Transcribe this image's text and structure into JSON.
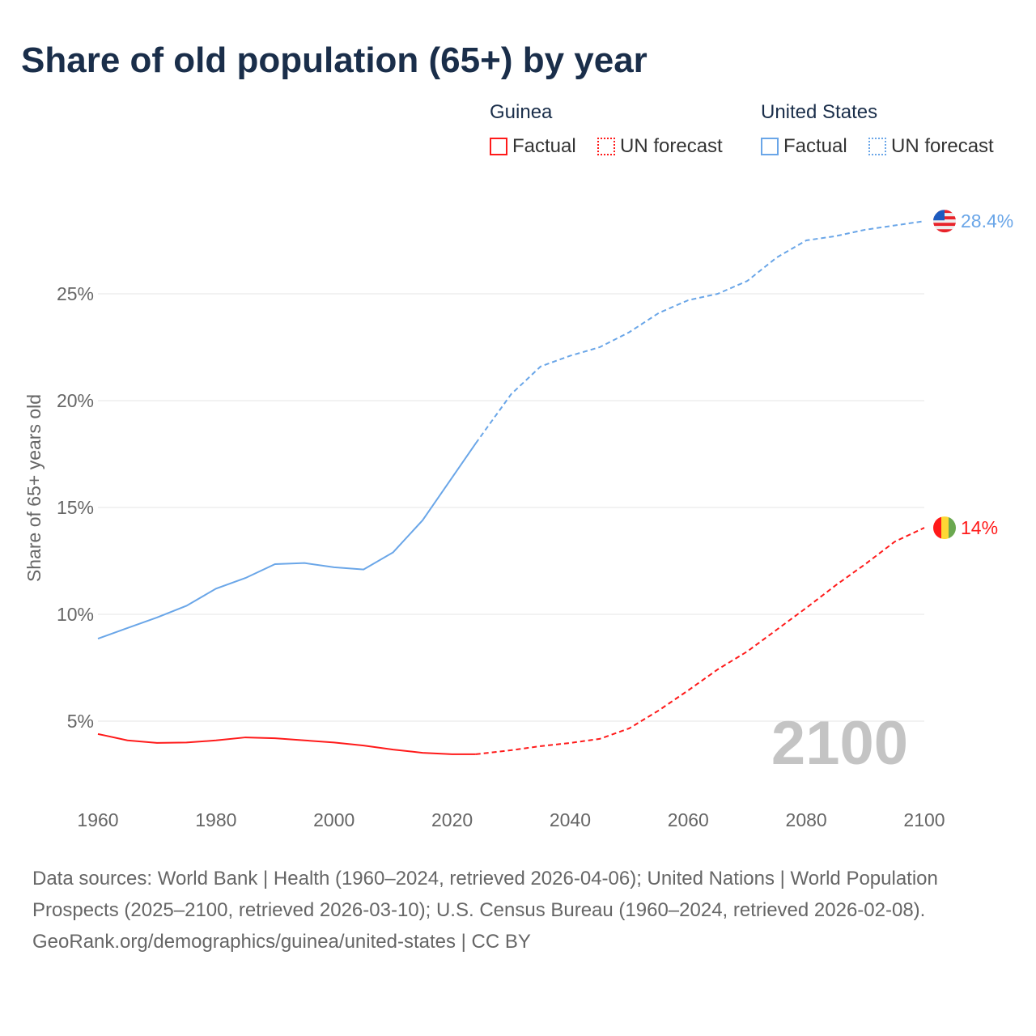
{
  "title": "Share of old population (65+) by year",
  "legend": {
    "groups": [
      {
        "name": "Guinea",
        "color": "#ff1a1a",
        "items": [
          "Factual",
          "UN forecast"
        ]
      },
      {
        "name": "United States",
        "color": "#6aa6e8",
        "items": [
          "Factual",
          "UN forecast"
        ]
      }
    ]
  },
  "year_watermark": "2100",
  "footer": {
    "sources": "Data sources: World Bank | Health (1960–2024, retrieved 2026-04-06); United Nations | World Population Prospects (2025–2100, retrieved 2026-03-10); U.S. Census Bureau (1960–2024, retrieved 2026-02-08).",
    "credit": "GeoRank.org/demographics/guinea/united-states | CC BY"
  },
  "chart_data": {
    "type": "line",
    "title": "Share of old population (65+) by year",
    "xlabel": "",
    "ylabel": "Share of 65+ years old",
    "xlim": [
      1960,
      2100
    ],
    "ylim": [
      0,
      30
    ],
    "xticks": [
      1960,
      1980,
      2000,
      2020,
      2040,
      2060,
      2080,
      2100
    ],
    "xtick_labels": [
      "1960",
      "1980",
      "2000",
      "2020",
      "2040",
      "2060",
      "2080",
      "2100"
    ],
    "yticks": [
      5,
      10,
      15,
      20,
      25
    ],
    "ytick_labels": [
      "5%",
      "10%",
      "15%",
      "20%",
      "25%"
    ],
    "grid": true,
    "legend_position": "top-right",
    "forecast_start": 2024,
    "x": [
      1960,
      1965,
      1970,
      1975,
      1980,
      1985,
      1990,
      1995,
      2000,
      2005,
      2010,
      2015,
      2020,
      2024,
      2030,
      2035,
      2040,
      2045,
      2050,
      2055,
      2060,
      2065,
      2070,
      2075,
      2080,
      2085,
      2090,
      2095,
      2100
    ],
    "series": [
      {
        "name": "United States",
        "color": "#6aa6e8",
        "end_label": "28.4%",
        "values": [
          8.86,
          9.36,
          9.85,
          10.4,
          11.2,
          11.7,
          12.35,
          12.4,
          12.2,
          12.1,
          12.9,
          14.4,
          16.4,
          18.0,
          20.3,
          21.6,
          22.1,
          22.5,
          23.2,
          24.1,
          24.7,
          25.0,
          25.6,
          26.7,
          27.5,
          27.7,
          28.0,
          28.2,
          28.4
        ]
      },
      {
        "name": "Guinea",
        "color": "#ff1a1a",
        "end_label": "14%",
        "values": [
          4.4,
          4.1,
          3.98,
          4.0,
          4.1,
          4.24,
          4.2,
          4.1,
          4.0,
          3.86,
          3.67,
          3.52,
          3.45,
          3.45,
          3.64,
          3.83,
          3.98,
          4.17,
          4.66,
          5.5,
          6.44,
          7.42,
          8.26,
          9.28,
          10.3,
          11.36,
          12.35,
          13.4,
          14.05
        ]
      }
    ]
  }
}
